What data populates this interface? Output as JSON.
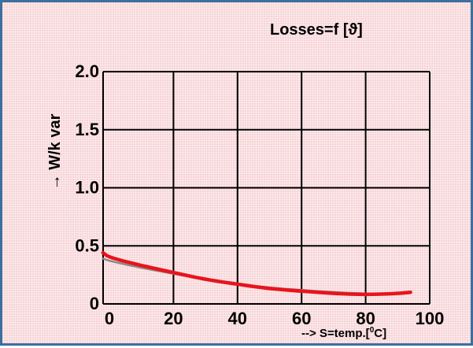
{
  "chart_data": {
    "type": "line",
    "title": "Losses=f [ϑ]",
    "xlabel_prefix": "--> S=temp.[",
    "xlabel_sup": "0",
    "xlabel_suffix": "C]",
    "ylabel": "→ W/k var",
    "xlim": [
      0,
      100
    ],
    "ylim": [
      0,
      2.0
    ],
    "x_ticks": [
      "0",
      "20",
      "40",
      "60",
      "80",
      "100"
    ],
    "x_tick_values": [
      0,
      20,
      40,
      60,
      80,
      100
    ],
    "y_ticks": [
      "0",
      "0.5",
      "1.0",
      "1.5",
      "2.0"
    ],
    "y_tick_values": [
      0,
      0.5,
      1.0,
      1.5,
      2.0
    ],
    "grid": true,
    "series": [
      {
        "color": "#e8141c",
        "x": [
          -2,
          0,
          10,
          20,
          30,
          40,
          50,
          60,
          70,
          80,
          90,
          94
        ],
        "y": [
          0.44,
          0.4,
          0.33,
          0.27,
          0.21,
          0.17,
          0.13,
          0.11,
          0.09,
          0.08,
          0.09,
          0.1
        ]
      },
      {
        "color": "#8a8a8a",
        "x": [
          -2,
          0,
          10,
          20,
          30,
          40,
          50,
          60,
          70,
          80
        ],
        "y": [
          0.39,
          0.37,
          0.31,
          0.26,
          0.21,
          0.17,
          0.14,
          0.12,
          0.1,
          0.09
        ]
      }
    ]
  }
}
